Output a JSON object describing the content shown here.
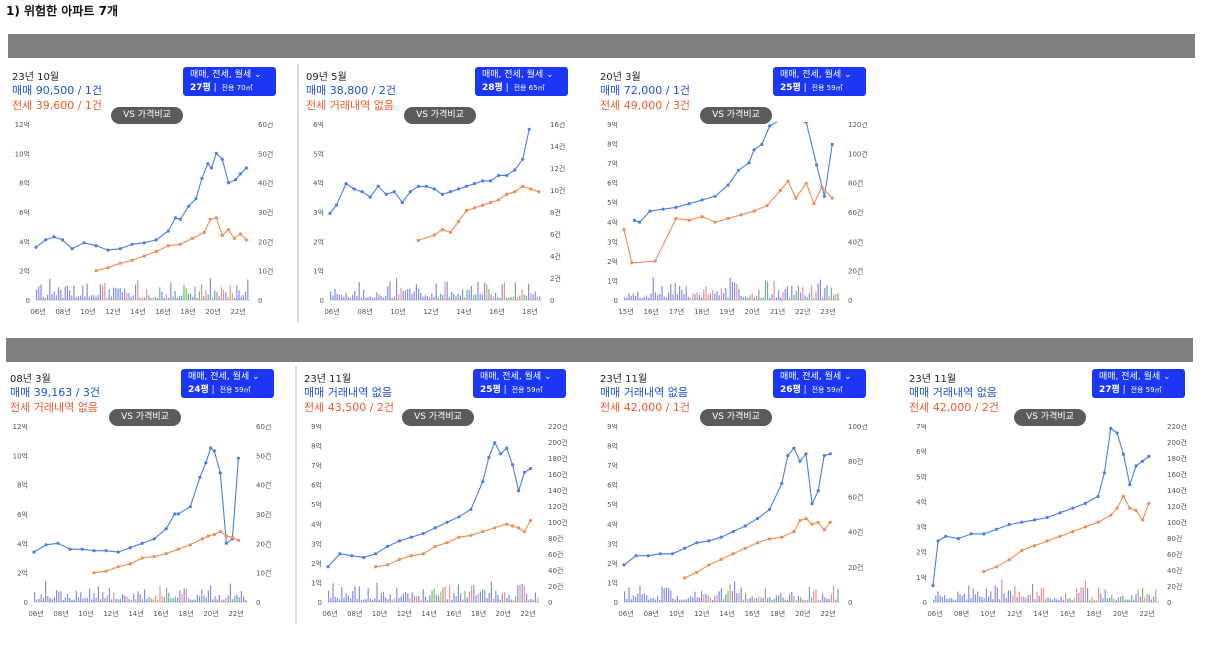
{
  "page": {
    "title": "1) 위험한 아파트 7개"
  },
  "colors": {
    "sale": "#4a7ee6",
    "rent": "#f28b52",
    "volume_sale": "#6d79e8",
    "volume_rent": "#f07f76",
    "volume_monthly": "#49b949",
    "dropdown": "#1b36f5",
    "band": "#808080",
    "vs_button": "#5b5b5b",
    "sale_text": "#1f4fe0",
    "rent_text": "#f05a28"
  },
  "cards": [
    {
      "month": "23년 10월",
      "sale_text": "매매 90,500 / 1건",
      "rent_text": "전세 39,600 / 1건",
      "dropdown_label": "매매, 전세, 월세",
      "pyeong": "27평",
      "area": "전용 70㎡",
      "vs_label": "VS 가격비교",
      "y_left_ticks": [
        "12억",
        "10억",
        "8억",
        "6억",
        "4억",
        "2억",
        "0"
      ],
      "y_right_ticks": [
        "60건",
        "50건",
        "40건",
        "30건",
        "20건",
        "10건",
        "0"
      ],
      "x_ticks": [
        "06년",
        "08년",
        "10년",
        "12년",
        "14년",
        "16년",
        "18년",
        "20년",
        "22년"
      ]
    },
    {
      "month": "09년 5월",
      "sale_text": "매매 38,800 / 2건",
      "rent_text": "전세 거래내역 없음",
      "dropdown_label": "매매, 전세, 월세",
      "pyeong": "28평",
      "area": "전용 65㎡",
      "vs_label": "VS 가격비교",
      "y_left_ticks": [
        "6억",
        "5억",
        "4억",
        "3억",
        "2억",
        "1억",
        "0"
      ],
      "y_right_ticks": [
        "16건",
        "14건",
        "12건",
        "10건",
        "8건",
        "6건",
        "4건",
        "2건",
        "0"
      ],
      "x_ticks": [
        "06년",
        "08년",
        "10년",
        "12년",
        "14년",
        "16년",
        "18년"
      ]
    },
    {
      "month": "20년 3월",
      "sale_text": "매매 72,000 / 1건",
      "rent_text": "전세 49,000 / 3건",
      "dropdown_label": "매매, 전세, 월세",
      "pyeong": "25평",
      "area": "전용 59㎡",
      "vs_label": "VS 가격비교",
      "y_left_ticks": [
        "9억",
        "8억",
        "7억",
        "6억",
        "5억",
        "4억",
        "3억",
        "2억",
        "1억",
        "0"
      ],
      "y_right_ticks": [
        "120건",
        "100건",
        "80건",
        "60건",
        "40건",
        "20건",
        "0"
      ],
      "x_ticks": [
        "15년",
        "16년",
        "17년",
        "18년",
        "19년",
        "20년",
        "21년",
        "22년",
        "23년"
      ]
    },
    {
      "month": "08년 3월",
      "sale_text": "매매 39,163 / 3건",
      "rent_text": "전세 거래내역 없음",
      "dropdown_label": "매매, 전세, 월세",
      "pyeong": "24평",
      "area": "전용 59㎡",
      "vs_label": "VS 가격비교",
      "y_left_ticks": [
        "12억",
        "10억",
        "8억",
        "6억",
        "4억",
        "2억",
        "0"
      ],
      "y_right_ticks": [
        "60건",
        "50건",
        "40건",
        "30건",
        "20건",
        "10건",
        "0"
      ],
      "x_ticks": [
        "06년",
        "08년",
        "10년",
        "12년",
        "14년",
        "16년",
        "18년",
        "20년",
        "22년"
      ]
    },
    {
      "month": "23년 11월",
      "sale_text": "매매 거래내역 없음",
      "rent_text": "전세 43,500 / 2건",
      "dropdown_label": "매매, 전세, 월세",
      "pyeong": "25평",
      "area": "전용 59㎡",
      "vs_label": "VS 가격비교",
      "y_left_ticks": [
        "9억",
        "8억",
        "7억",
        "6억",
        "5억",
        "4억",
        "3억",
        "2억",
        "1억",
        "0"
      ],
      "y_right_ticks": [
        "220건",
        "200건",
        "180건",
        "160건",
        "140건",
        "120건",
        "100건",
        "80건",
        "60건",
        "40건",
        "20건",
        "0"
      ],
      "x_ticks": [
        "06년",
        "08년",
        "10년",
        "12년",
        "14년",
        "16년",
        "18년",
        "20년",
        "22년"
      ]
    },
    {
      "month": "23년 11월",
      "sale_text": "매매 거래내역 없음",
      "rent_text": "전세 42,000 / 1건",
      "dropdown_label": "매매, 전세, 월세",
      "pyeong": "26평",
      "area": "전용 59㎡",
      "vs_label": "VS 가격비교",
      "y_left_ticks": [
        "9억",
        "8억",
        "7억",
        "6억",
        "5억",
        "4억",
        "3억",
        "2억",
        "1억",
        "0"
      ],
      "y_right_ticks": [
        "100건",
        "80건",
        "60건",
        "40건",
        "20건",
        "0"
      ],
      "x_ticks": [
        "06년",
        "08년",
        "10년",
        "12년",
        "14년",
        "16년",
        "18년",
        "20년",
        "22년"
      ]
    },
    {
      "month": "23년 11월",
      "sale_text": "매매 거래내역 없음",
      "rent_text": "전세 42,000 / 2건",
      "dropdown_label": "매매, 전세, 월세",
      "pyeong": "27평",
      "area": "전용 59㎡",
      "vs_label": "VS 가격비교",
      "y_left_ticks": [
        "7억",
        "6억",
        "5억",
        "4억",
        "3억",
        "2억",
        "1억",
        "0"
      ],
      "y_right_ticks": [
        "220건",
        "200건",
        "180건",
        "160건",
        "140건",
        "120건",
        "100건",
        "80건",
        "60건",
        "40건",
        "20건",
        "0"
      ],
      "x_ticks": [
        "06년",
        "08년",
        "10년",
        "12년",
        "14년",
        "16년",
        "18년",
        "20년",
        "22년"
      ]
    }
  ],
  "chart_data": [
    {
      "type": "line",
      "ylabel_left": "억",
      "ylabel_right": "건",
      "ylim": [
        0,
        12
      ],
      "ylim_right": [
        0,
        60
      ],
      "x_range": [
        2006,
        2023.8
      ],
      "series": [
        {
          "x": [
            2006,
            2006.8,
            2007.5,
            2008.2,
            2009,
            2010,
            2011,
            2012,
            2013,
            2014,
            2015,
            2016,
            2017,
            2017.6,
            2018,
            2018.7,
            2019.3,
            2019.8,
            2020.3,
            2020.6,
            2021,
            2021.5,
            2022,
            2022.6,
            2023,
            2023.5
          ],
          "values": [
            3.6,
            4.1,
            4.3,
            4.1,
            3.5,
            3.9,
            3.7,
            3.4,
            3.5,
            3.8,
            3.9,
            4.1,
            4.7,
            5.6,
            5.5,
            6.4,
            6.9,
            8.3,
            9.3,
            9.0,
            10.0,
            9.6,
            8.0,
            8.2,
            8.6,
            9.0
          ]
        },
        {
          "x": [
            2011,
            2012,
            2013,
            2014,
            2015,
            2016,
            2017,
            2018,
            2019,
            2020,
            2020.5,
            2021,
            2021.5,
            2022,
            2022.5,
            2023,
            2023.5
          ],
          "values": [
            2.0,
            2.2,
            2.5,
            2.7,
            3.0,
            3.3,
            3.7,
            3.8,
            4.2,
            4.6,
            5.5,
            5.6,
            4.4,
            4.8,
            4.2,
            4.5,
            4.1
          ]
        }
      ]
    },
    {
      "type": "line",
      "ylabel_left": "억",
      "ylabel_right": "건",
      "ylim": [
        0,
        6.5
      ],
      "ylim_right": [
        0,
        16
      ],
      "x_range": [
        2006,
        2019.2
      ],
      "series": [
        {
          "x": [
            2006,
            2006.4,
            2007,
            2007.5,
            2008,
            2008.5,
            2009,
            2009.5,
            2010,
            2010.5,
            2011,
            2011.5,
            2012,
            2012.5,
            2013,
            2013.5,
            2014,
            2014.5,
            2015,
            2015.5,
            2016,
            2016.5,
            2017,
            2017.5,
            2018,
            2018.4
          ],
          "values": [
            3.2,
            3.5,
            4.3,
            4.1,
            4.0,
            3.8,
            4.2,
            3.9,
            4.0,
            3.6,
            4.0,
            4.2,
            4.2,
            4.1,
            3.9,
            4.0,
            4.1,
            4.2,
            4.3,
            4.4,
            4.4,
            4.6,
            4.6,
            4.8,
            5.2,
            6.3
          ]
        },
        {
          "x": [
            2011.5,
            2012.5,
            2013,
            2013.5,
            2014,
            2014.5,
            2015,
            2015.5,
            2016,
            2016.5,
            2017,
            2017.5,
            2018,
            2018.5,
            2019
          ],
          "values": [
            2.2,
            2.4,
            2.6,
            2.5,
            2.9,
            3.3,
            3.4,
            3.5,
            3.6,
            3.7,
            3.9,
            4.0,
            4.2,
            4.1,
            4.0
          ]
        }
      ]
    },
    {
      "type": "line",
      "ylabel_left": "억",
      "ylabel_right": "건",
      "ylim": [
        0,
        9.5
      ],
      "ylim_right": [
        0,
        120
      ],
      "x_range": [
        2015,
        2023.3
      ],
      "series": [
        {
          "x": [
            2015.4,
            2015.6,
            2016,
            2016.5,
            2017,
            2017.5,
            2018,
            2018.5,
            2019,
            2019.4,
            2019.8,
            2020,
            2020.3,
            2020.6,
            2021,
            2021.5,
            2022,
            2022.4,
            2022.7,
            2023
          ],
          "values": [
            4.3,
            4.2,
            4.8,
            4.9,
            5.0,
            5.2,
            5.4,
            5.6,
            6.2,
            7.0,
            7.4,
            8.1,
            8.4,
            9.4,
            9.7,
            9.7,
            9.6,
            7.3,
            5.6,
            8.4
          ]
        },
        {
          "x": [
            2015,
            2015.3,
            2016.2,
            2017,
            2017.5,
            2018,
            2018.5,
            2019,
            2019.5,
            2020,
            2020.5,
            2021,
            2021.3,
            2021.6,
            2022,
            2022.3,
            2022.6,
            2023
          ],
          "values": [
            3.8,
            2.0,
            2.1,
            4.4,
            4.3,
            4.5,
            4.2,
            4.4,
            4.6,
            4.8,
            5.1,
            5.9,
            6.4,
            5.5,
            6.3,
            5.2,
            6.1,
            5.5
          ]
        }
      ]
    },
    {
      "type": "line",
      "ylabel_left": "억",
      "ylabel_right": "건",
      "ylim": [
        0,
        12
      ],
      "ylim_right": [
        0,
        60
      ],
      "x_range": [
        2006,
        2023.8
      ],
      "series": [
        {
          "x": [
            2006,
            2007,
            2008,
            2009,
            2010,
            2011,
            2012,
            2013,
            2014,
            2015,
            2016,
            2017,
            2017.7,
            2018,
            2019,
            2019.8,
            2020.3,
            2020.7,
            2021,
            2021.5,
            2022,
            2022.5,
            2023
          ],
          "values": [
            3.4,
            3.9,
            4.0,
            3.6,
            3.6,
            3.5,
            3.5,
            3.4,
            3.7,
            4.0,
            4.3,
            5.0,
            6.0,
            6.0,
            6.5,
            8.5,
            9.5,
            10.5,
            10.3,
            8.8,
            4.0,
            4.3,
            9.8
          ]
        },
        {
          "x": [
            2011,
            2012,
            2013,
            2014,
            2015,
            2016,
            2017,
            2018,
            2019,
            2020,
            2020.5,
            2021,
            2021.5,
            2022,
            2022.5,
            2023
          ],
          "values": [
            2.0,
            2.1,
            2.4,
            2.6,
            3.0,
            3.1,
            3.3,
            3.6,
            3.9,
            4.3,
            4.5,
            4.6,
            4.8,
            4.5,
            4.4,
            4.2
          ]
        }
      ]
    },
    {
      "type": "line",
      "ylabel_left": "억",
      "ylabel_right": "건",
      "ylim": [
        0,
        9.5
      ],
      "ylim_right": [
        0,
        220
      ],
      "x_range": [
        2006,
        2023.8
      ],
      "series": [
        {
          "x": [
            2006,
            2007,
            2008,
            2009,
            2010,
            2011,
            2012,
            2013,
            2014,
            2015,
            2016,
            2017,
            2018,
            2019,
            2019.5,
            2020,
            2020.5,
            2021,
            2021.5,
            2022,
            2022.5,
            2023
          ],
          "values": [
            1.9,
            2.6,
            2.5,
            2.4,
            2.6,
            3.0,
            3.3,
            3.5,
            3.7,
            4.0,
            4.3,
            4.6,
            5.0,
            6.5,
            7.8,
            8.6,
            8.0,
            8.3,
            7.4,
            6.0,
            7.0,
            7.2
          ]
        },
        {
          "x": [
            2010,
            2011,
            2012,
            2013,
            2014,
            2015,
            2016,
            2017,
            2018,
            2019,
            2020,
            2021,
            2021.5,
            2022,
            2022.5,
            2023
          ],
          "values": [
            1.9,
            2.0,
            2.3,
            2.5,
            2.6,
            3.0,
            3.2,
            3.5,
            3.6,
            3.8,
            4.0,
            4.2,
            4.1,
            4.0,
            3.8,
            4.4
          ]
        }
      ]
    },
    {
      "type": "line",
      "ylabel_left": "억",
      "ylabel_right": "건",
      "ylim": [
        0,
        9.5
      ],
      "ylim_right": [
        0,
        100
      ],
      "x_range": [
        2006,
        2023.8
      ],
      "series": [
        {
          "x": [
            2006,
            2007,
            2008,
            2009,
            2010,
            2011,
            2012,
            2013,
            2014,
            2015,
            2016,
            2017,
            2018,
            2019,
            2019.5,
            2020,
            2020.5,
            2021,
            2021.5,
            2022,
            2022.5,
            2023
          ],
          "values": [
            2.0,
            2.5,
            2.5,
            2.6,
            2.6,
            2.9,
            3.2,
            3.3,
            3.5,
            3.8,
            4.1,
            4.5,
            5.0,
            6.4,
            7.9,
            8.3,
            7.6,
            8.0,
            5.3,
            6.0,
            7.9,
            8.0
          ]
        },
        {
          "x": [
            2011,
            2012,
            2013,
            2014,
            2015,
            2016,
            2017,
            2018,
            2019,
            2020,
            2020.5,
            2021,
            2021.5,
            2022,
            2022.5,
            2023
          ],
          "values": [
            1.3,
            1.6,
            2.0,
            2.3,
            2.6,
            2.9,
            3.2,
            3.4,
            3.5,
            3.8,
            4.4,
            4.5,
            4.2,
            4.3,
            3.9,
            4.3
          ]
        }
      ]
    },
    {
      "type": "line",
      "ylabel_left": "억",
      "ylabel_right": "건",
      "ylim": [
        0,
        7.5
      ],
      "ylim_right": [
        0,
        220
      ],
      "x_range": [
        2006,
        2023.8
      ],
      "series": [
        {
          "x": [
            2006,
            2006.4,
            2007,
            2008,
            2009,
            2010,
            2011,
            2012,
            2013,
            2014,
            2015,
            2016,
            2017,
            2018,
            2019,
            2019.5,
            2020,
            2020.5,
            2021,
            2021.5,
            2022,
            2022.5,
            2023
          ],
          "values": [
            0.7,
            2.6,
            2.8,
            2.7,
            2.9,
            2.9,
            3.1,
            3.3,
            3.4,
            3.5,
            3.6,
            3.8,
            4.0,
            4.2,
            4.5,
            5.5,
            7.4,
            7.2,
            6.3,
            5.0,
            5.8,
            6.0,
            6.2
          ]
        },
        {
          "x": [
            2010,
            2011,
            2012,
            2013,
            2014,
            2015,
            2016,
            2017,
            2018,
            2019,
            2020,
            2020.5,
            2021,
            2021.5,
            2022,
            2022.5,
            2023
          ],
          "values": [
            1.3,
            1.5,
            1.8,
            2.2,
            2.4,
            2.6,
            2.8,
            3.0,
            3.2,
            3.4,
            3.7,
            4.0,
            4.5,
            4.0,
            3.9,
            3.5,
            4.2
          ]
        }
      ]
    }
  ]
}
